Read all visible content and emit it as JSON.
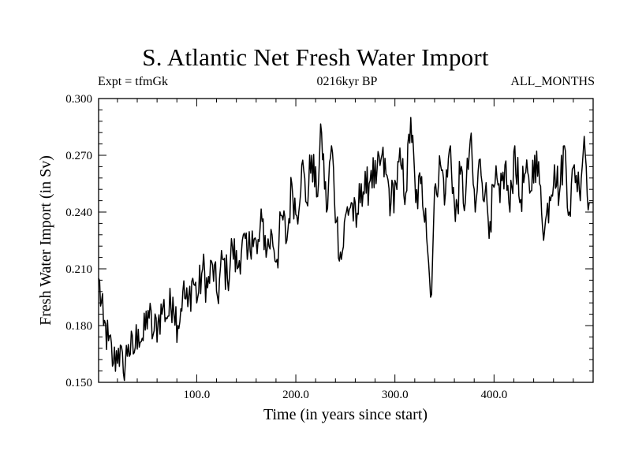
{
  "chart_data": {
    "type": "line",
    "title": "S. Atlantic Net Fresh Water Import",
    "subtitle_left": "Expt = tfmGk",
    "subtitle_center": "0216kyr BP",
    "subtitle_right": "ALL_MONTHS",
    "xlabel": "Time (in years since start)",
    "ylabel": "Fresh Water Import (in Sv)",
    "xlim": [
      1,
      500
    ],
    "ylim": [
      0.15,
      0.3
    ],
    "x_ticks": [
      100,
      200,
      300,
      400
    ],
    "x_tick_labels": [
      "100.0",
      "200.0",
      "300.0",
      "400.0"
    ],
    "y_ticks": [
      0.15,
      0.18,
      0.21,
      0.24,
      0.27,
      0.3
    ],
    "y_tick_labels": [
      "0.150",
      "0.180",
      "0.210",
      "0.240",
      "0.270",
      "0.300"
    ],
    "series": [
      {
        "name": "Fresh Water Import",
        "x_start": 1,
        "x_step": 5,
        "values": [
          0.205,
          0.18,
          0.172,
          0.16,
          0.168,
          0.155,
          0.17,
          0.165,
          0.178,
          0.172,
          0.188,
          0.175,
          0.182,
          0.19,
          0.185,
          0.195,
          0.18,
          0.198,
          0.19,
          0.205,
          0.195,
          0.21,
          0.2,
          0.212,
          0.195,
          0.215,
          0.205,
          0.222,
          0.21,
          0.225,
          0.215,
          0.23,
          0.218,
          0.235,
          0.22,
          0.228,
          0.215,
          0.238,
          0.225,
          0.255,
          0.238,
          0.265,
          0.245,
          0.27,
          0.248,
          0.282,
          0.24,
          0.275,
          0.235,
          0.215,
          0.24,
          0.245,
          0.232,
          0.255,
          0.25,
          0.262,
          0.255,
          0.268,
          0.26,
          0.245,
          0.255,
          0.265,
          0.25,
          0.29,
          0.245,
          0.255,
          0.242,
          0.195,
          0.255,
          0.265,
          0.25,
          0.275,
          0.235,
          0.26,
          0.245,
          0.278,
          0.24,
          0.268,
          0.25,
          0.235,
          0.255,
          0.245,
          0.265,
          0.24,
          0.275,
          0.245,
          0.26,
          0.25,
          0.27,
          0.255,
          0.23,
          0.248,
          0.265,
          0.25,
          0.275,
          0.24,
          0.265,
          0.252,
          0.28,
          0.245
        ]
      }
    ]
  }
}
